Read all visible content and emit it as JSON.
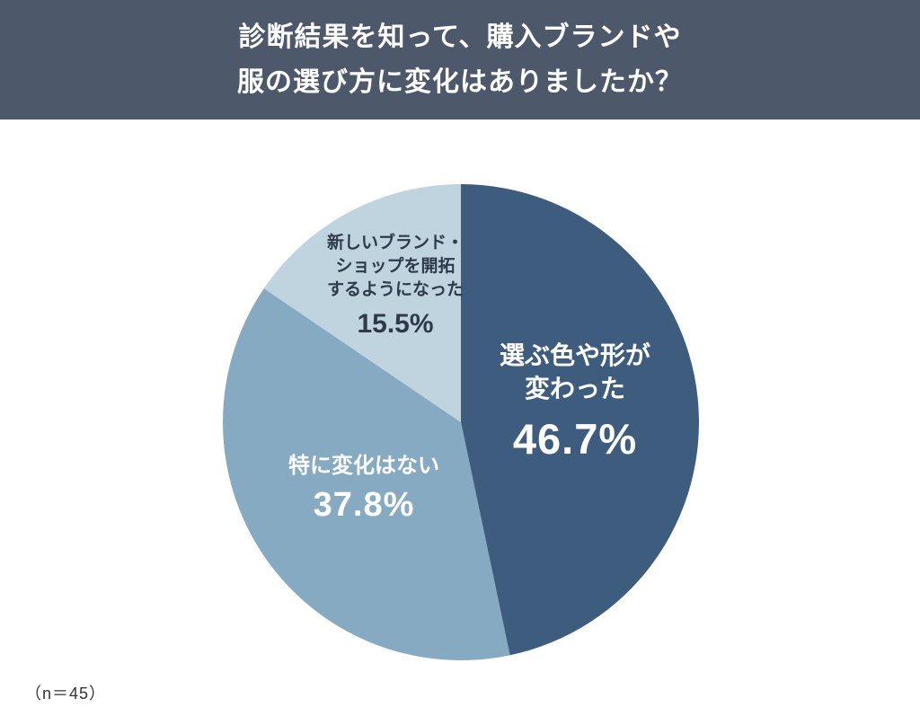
{
  "header": {
    "title_line1": "診断結果を知って、購入ブランドや",
    "title_line2": "服の選び方に変化はありましたか？",
    "background": "#4d596a",
    "text_color": "#ffffff"
  },
  "footnote": "（n＝45）",
  "chart_data": {
    "type": "pie",
    "title": "診断結果を知って、購入ブランドや服の選び方に変化はありましたか？",
    "sample_size": 45,
    "start_angle_deg": 0,
    "direction": "clockwise",
    "legend_position": "none",
    "slices": [
      {
        "label": "選ぶ色や形が変わった",
        "label_lines": [
          "選ぶ色や形が",
          "変わった"
        ],
        "value": 46.7,
        "pct_label": "46.7%",
        "color": "#3e5c7e",
        "label_color": "#ffffff"
      },
      {
        "label": "特に変化はない",
        "label_lines": [
          "特に変化はない"
        ],
        "value": 37.8,
        "pct_label": "37.8%",
        "color": "#87aac3",
        "label_color": "#ffffff"
      },
      {
        "label": "新しいブランド・ショップを開拓するようになった",
        "label_lines": [
          "新しいブランド・",
          "ショップを開拓",
          "するようになった"
        ],
        "value": 15.5,
        "pct_label": "15.5%",
        "color": "#bfd4df",
        "label_color": "#2e3a49"
      }
    ]
  }
}
